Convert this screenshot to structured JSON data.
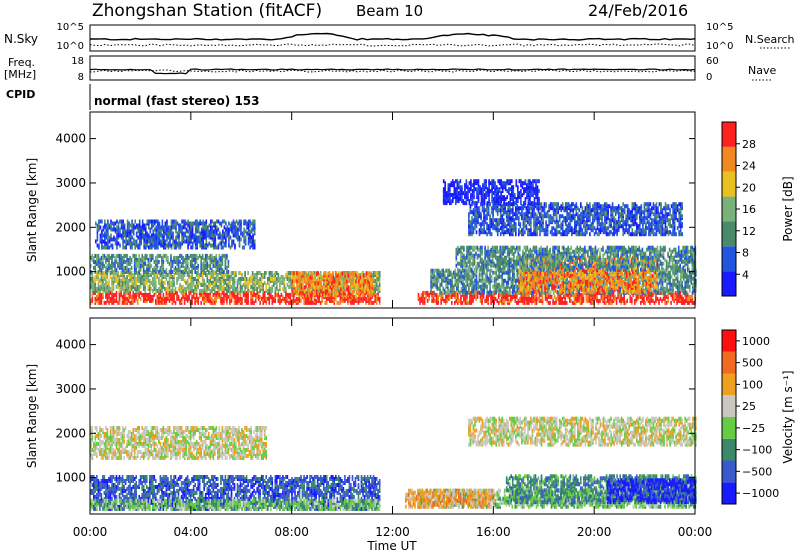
{
  "header": {
    "title": "Zhongshan Station (fitACF)",
    "beam": "Beam 10",
    "date": "24/Feb/2016"
  },
  "strips": {
    "nsky_label": "N.Sky",
    "nsky_ticks": [
      "10^5",
      "10^0"
    ],
    "nsearch_label": "N.Search",
    "nsearch_ticks": [
      "10^5",
      "10^0"
    ],
    "freq_label_1": "Freq.",
    "freq_label_2": "[MHz]",
    "freq_ticks": [
      "18",
      "8"
    ],
    "nave_label": "Nave",
    "nave_ticks": [
      "60",
      "0"
    ],
    "cpid_label": "CPID",
    "cpid_text": "normal (fast stereo) 153"
  },
  "chart_data": [
    {
      "type": "heatmap",
      "name": "power",
      "ylabel": "Slant Range [km]",
      "xlabel": "Time UT",
      "x_ticks": [
        "00:00",
        "04:00",
        "08:00",
        "12:00",
        "16:00",
        "20:00",
        "00:00"
      ],
      "xlim": [
        0,
        24
      ],
      "y_ticks": [
        1000,
        2000,
        3000,
        4000
      ],
      "ylim": [
        180,
        4600
      ],
      "colorbar_label": "Power [dB]",
      "colorbar_ticks": [
        "4",
        "8",
        "12",
        "16",
        "20",
        "24",
        "28"
      ],
      "colorbar_range": [
        0,
        32
      ],
      "colors": [
        "#1a1aff",
        "#2255dd",
        "#4a8a6a",
        "#7ab07a",
        "#e8c020",
        "#f08a20",
        "#ff2020"
      ],
      "regions": [
        {
          "t": [
            0.0,
            11.5
          ],
          "r": [
            250,
            520
          ],
          "level": 6
        },
        {
          "t": [
            0.0,
            11.5
          ],
          "r": [
            520,
            950
          ],
          "level": 3
        },
        {
          "t": [
            0.0,
            5.5
          ],
          "r": [
            950,
            1350
          ],
          "level": 2
        },
        {
          "t": [
            0.2,
            6.5
          ],
          "r": [
            1500,
            2100
          ],
          "level": 1
        },
        {
          "t": [
            8.0,
            11.2
          ],
          "r": [
            420,
            950
          ],
          "level": 5
        },
        {
          "t": [
            13.0,
            24.0
          ],
          "r": [
            250,
            480
          ],
          "level": 6
        },
        {
          "t": [
            13.5,
            24.0
          ],
          "r": [
            480,
            1000
          ],
          "level": 2
        },
        {
          "t": [
            17.0,
            22.5
          ],
          "r": [
            500,
            1300
          ],
          "level": 5
        },
        {
          "t": [
            14.5,
            24.0
          ],
          "r": [
            1000,
            1500
          ],
          "level": 2
        },
        {
          "t": [
            15.0,
            23.5
          ],
          "r": [
            1800,
            2500
          ],
          "level": 1
        },
        {
          "t": [
            14.0,
            17.8
          ],
          "r": [
            2500,
            3000
          ],
          "level": 0
        }
      ]
    },
    {
      "type": "heatmap",
      "name": "velocity",
      "ylabel": "Slant Range [km]",
      "xlabel": "Time UT",
      "x_ticks": [
        "00:00",
        "04:00",
        "08:00",
        "12:00",
        "16:00",
        "20:00",
        "00:00"
      ],
      "xlim": [
        0,
        24
      ],
      "y_ticks": [
        1000,
        2000,
        3000,
        4000
      ],
      "ylim": [
        180,
        4600
      ],
      "colorbar_label": "Velocity [m s⁻¹]",
      "colorbar_ticks": [
        "1000",
        "500",
        "100",
        "25",
        "−25",
        "−100",
        "−500",
        "−1000"
      ],
      "colors": [
        "#1a1aff",
        "#3a5acc",
        "#3a8a6a",
        "#66cc44",
        "#c8c8c0",
        "#f0a020",
        "#f06a20",
        "#ff1010"
      ],
      "regions": [
        {
          "t": [
            0.0,
            11.5
          ],
          "r": [
            250,
            1000
          ],
          "level": 1
        },
        {
          "t": [
            0.0,
            11.5
          ],
          "r": [
            250,
            450
          ],
          "level": 3
        },
        {
          "t": [
            0.0,
            7.0
          ],
          "r": [
            1400,
            2100
          ],
          "level": 4
        },
        {
          "t": [
            13.0,
            24.0
          ],
          "r": [
            300,
            700
          ],
          "level": 3
        },
        {
          "t": [
            16.5,
            24.0
          ],
          "r": [
            400,
            1000
          ],
          "level": 2
        },
        {
          "t": [
            20.5,
            24.0
          ],
          "r": [
            400,
            900
          ],
          "level": 0
        },
        {
          "t": [
            15.0,
            24.0
          ],
          "r": [
            1700,
            2300
          ],
          "level": 4
        },
        {
          "t": [
            12.5,
            16.0
          ],
          "r": [
            300,
            700
          ],
          "level": 5
        }
      ]
    }
  ],
  "footer": {
    "xlabel": "Time UT"
  }
}
